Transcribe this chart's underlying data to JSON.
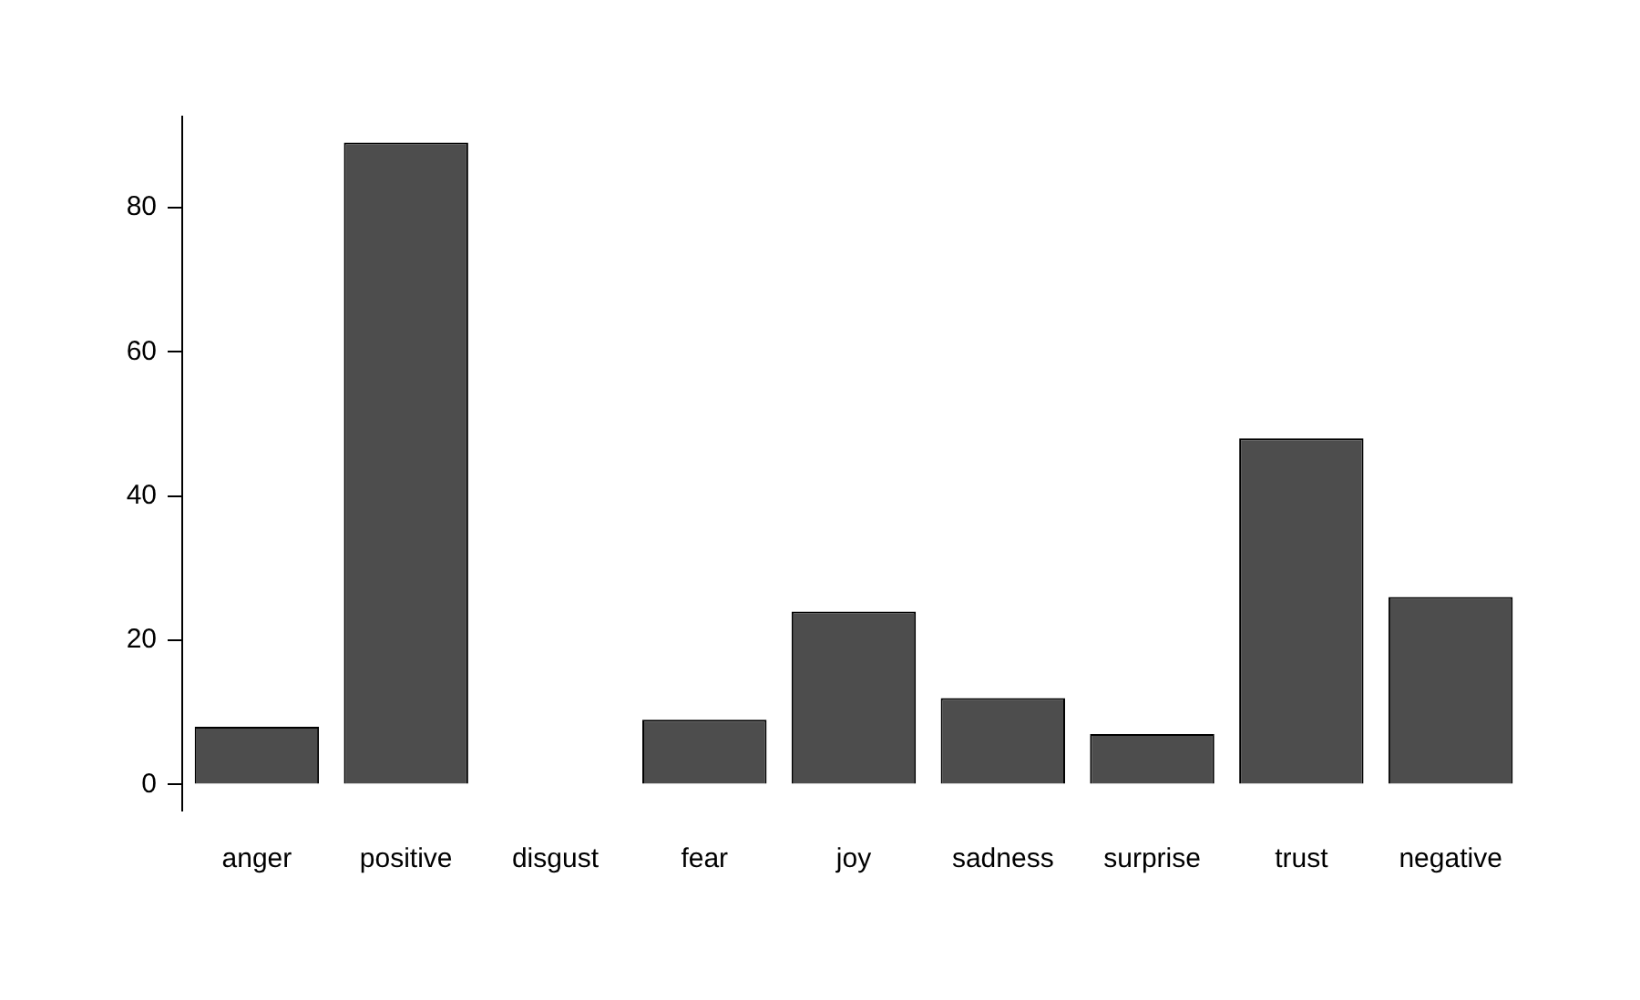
{
  "chart_data": {
    "type": "bar",
    "categories": [
      "anger",
      "positive",
      "disgust",
      "fear",
      "joy",
      "sadness",
      "surprise",
      "trust",
      "negative"
    ],
    "values": [
      8,
      89,
      0,
      9,
      24,
      12,
      7,
      48,
      26
    ],
    "color": "#4d4d4d",
    "ylim": [
      -3.6,
      92.6
    ],
    "yticks": [
      0,
      20,
      40,
      60,
      80
    ],
    "grid": false,
    "legend": false
  }
}
